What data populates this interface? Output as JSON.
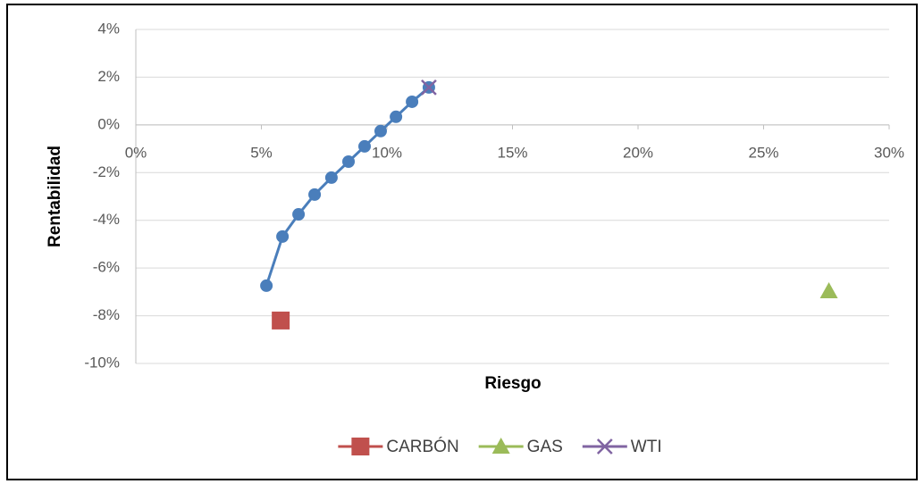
{
  "chart_data": {
    "type": "scatter",
    "x_label": "Riesgo",
    "y_label": "Rentabilidad",
    "xlim": [
      0,
      30
    ],
    "ylim": [
      -10,
      4
    ],
    "xticks": [
      {
        "value": 0,
        "label": "0%"
      },
      {
        "value": 5,
        "label": "5%"
      },
      {
        "value": 10,
        "label": "10%"
      },
      {
        "value": 15,
        "label": "15%"
      },
      {
        "value": 20,
        "label": "20%"
      },
      {
        "value": 25,
        "label": "25%"
      },
      {
        "value": 30,
        "label": "30%"
      }
    ],
    "yticks": [
      {
        "value": -10,
        "label": "-10%"
      },
      {
        "value": -8,
        "label": "-8%"
      },
      {
        "value": -6,
        "label": "-6%"
      },
      {
        "value": -4,
        "label": "-4%"
      },
      {
        "value": -2,
        "label": "-2%"
      },
      {
        "value": 0,
        "label": "0%"
      },
      {
        "value": 2,
        "label": "2%"
      },
      {
        "value": 4,
        "label": "4%"
      }
    ],
    "grid": true,
    "legend": "bottom",
    "series": [
      {
        "color": "#4a7ebb",
        "marker": "circle",
        "line": true,
        "x": [
          5.2,
          5.84,
          6.48,
          7.12,
          7.79,
          8.47,
          9.11,
          9.75,
          10.36,
          11.0,
          11.67
        ],
        "y": [
          -6.74,
          -4.68,
          -3.75,
          -2.92,
          -2.21,
          -1.54,
          -0.9,
          -0.26,
          0.34,
          0.97,
          1.57
        ]
      },
      {
        "name": "CARBÓN",
        "color": "#c0504d",
        "marker": "square",
        "x": [
          5.77
        ],
        "y": [
          -8.2
        ]
      },
      {
        "name": "GAS",
        "color": "#9bbb59",
        "marker": "triangle",
        "x": [
          27.6
        ],
        "y": [
          -6.97
        ]
      },
      {
        "name": "WTI",
        "color": "#8064a2",
        "marker": "x",
        "x": [
          11.67
        ],
        "y": [
          1.57
        ]
      }
    ]
  }
}
